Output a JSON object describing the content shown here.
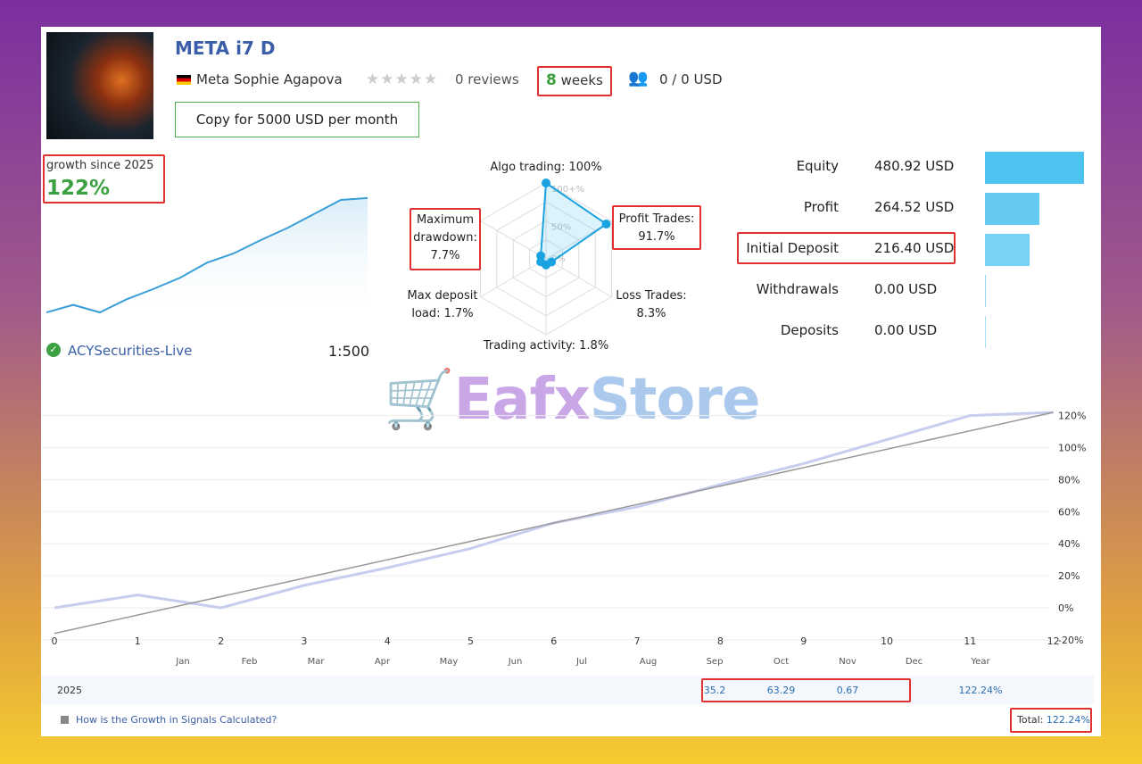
{
  "header": {
    "title": "META i7 D",
    "author": "Meta Sophie Agapova",
    "reviews": "0 reviews",
    "weeks_num": "8",
    "weeks_label": "weeks",
    "subscribers": "0 / 0 USD",
    "copy_button": "Copy for 5000 USD per month",
    "rating_stars": 0
  },
  "growth": {
    "label": "growth since 2025",
    "value": "122%"
  },
  "broker": {
    "name": "ACYSecurities-Live",
    "leverage": "1:500"
  },
  "radar": {
    "labels": {
      "algo": "Algo trading: 100%",
      "profit": [
        "Profit Trades:",
        "91.7%"
      ],
      "loss": [
        "Loss Trades:",
        "8.3%"
      ],
      "activity": "Trading activity: 1.8%",
      "deposit": [
        "Max deposit",
        "load: 1.7%"
      ],
      "drawdown": [
        "Maximum",
        "drawdown:",
        "7.7%"
      ]
    },
    "ring_labels": [
      "100+%",
      "50%",
      "0%"
    ],
    "values": [
      100,
      91.7,
      8.3,
      1.8,
      1.7,
      7.7
    ]
  },
  "stats": [
    {
      "label": "Equity",
      "value": "480.92 USD",
      "amount": 480.92
    },
    {
      "label": "Profit",
      "value": "264.52 USD",
      "amount": 264.52
    },
    {
      "label": "Initial Deposit",
      "value": "216.40 USD",
      "amount": 216.4
    },
    {
      "label": "Withdrawals",
      "value": "0.00 USD",
      "amount": 0
    },
    {
      "label": "Deposits",
      "value": "0.00 USD",
      "amount": 0
    }
  ],
  "chart_data": {
    "type": "line",
    "x_ticks": [
      "0",
      "1",
      "2",
      "3",
      "4",
      "5",
      "6",
      "7",
      "8",
      "9",
      "10",
      "11",
      "12"
    ],
    "y_ticks": [
      "120%",
      "100%",
      "80%",
      "60%",
      "40%",
      "20%",
      "0%",
      "-20%"
    ],
    "ylim": [
      -20,
      125
    ],
    "xlim": [
      0,
      12
    ],
    "series": [
      {
        "x": [
          0,
          1,
          2,
          3,
          4,
          5,
          6,
          7,
          8,
          9,
          10,
          11,
          12
        ],
        "y": [
          0,
          8,
          0,
          14,
          25,
          37,
          53,
          63,
          77,
          90,
          105,
          120,
          122
        ]
      },
      {
        "x": [
          0,
          12
        ],
        "y": [
          -16,
          122
        ]
      }
    ],
    "colors": {
      "growth": "#c8cdf0",
      "trend": "#999999"
    }
  },
  "months": [
    "Jan",
    "Feb",
    "Mar",
    "Apr",
    "May",
    "Jun",
    "Jul",
    "Aug",
    "Sep",
    "Oct",
    "Nov",
    "Dec",
    "Year"
  ],
  "year_row": {
    "year": "2025",
    "values": [
      "",
      "",
      "",
      "",
      "",
      "",
      "",
      "",
      "35.2",
      "63.29",
      "0.67",
      "",
      "122.24%"
    ]
  },
  "footer": {
    "link": "How is the Growth in Signals Calculated?",
    "total_label": "Total:",
    "total_value": "122.24%"
  },
  "watermark": "EafxStore"
}
